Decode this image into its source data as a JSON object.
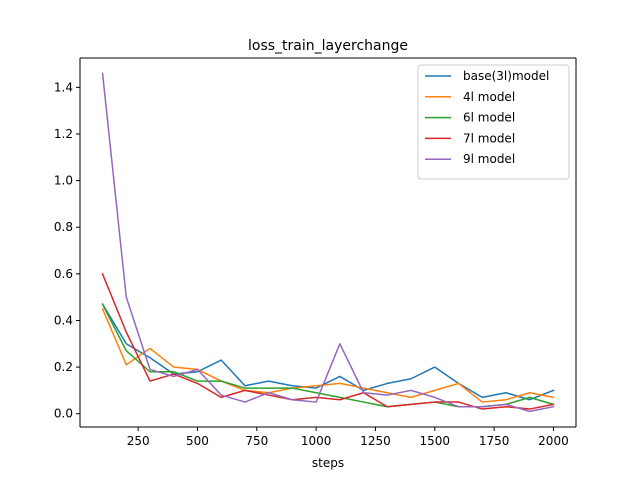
{
  "chart_data": {
    "type": "line",
    "title": "loss_train_layerchange",
    "xlabel": "steps",
    "ylabel": "",
    "xlim": [
      5,
      2095
    ],
    "ylim": [
      -0.057,
      1.526
    ],
    "xticks": [
      250,
      500,
      750,
      1000,
      1250,
      1500,
      1750,
      2000
    ],
    "yticks": [
      0.0,
      0.2,
      0.4,
      0.6,
      0.8,
      1.0,
      1.2,
      1.4
    ],
    "grid": false,
    "legend_position": "top-right",
    "x": [
      100,
      200,
      300,
      400,
      500,
      600,
      700,
      800,
      900,
      1000,
      1100,
      1200,
      1300,
      1400,
      1500,
      1600,
      1700,
      1800,
      1900,
      2000
    ],
    "series": [
      {
        "name": "base(3l)model",
        "color": "#1f77b4",
        "values": [
          0.47,
          0.3,
          0.24,
          0.17,
          0.18,
          0.23,
          0.12,
          0.14,
          0.12,
          0.11,
          0.16,
          0.1,
          0.13,
          0.15,
          0.2,
          0.13,
          0.07,
          0.09,
          0.06,
          0.1
        ]
      },
      {
        "name": "4l model",
        "color": "#ff7f0e",
        "values": [
          0.45,
          0.21,
          0.28,
          0.2,
          0.19,
          0.14,
          0.1,
          0.09,
          0.11,
          0.12,
          0.13,
          0.11,
          0.09,
          0.07,
          0.1,
          0.13,
          0.05,
          0.06,
          0.09,
          0.07
        ]
      },
      {
        "name": "6l model",
        "color": "#2ca02c",
        "values": [
          0.47,
          0.27,
          0.18,
          0.18,
          0.14,
          0.14,
          0.11,
          0.11,
          0.11,
          0.09,
          0.07,
          0.05,
          0.03,
          0.04,
          0.05,
          0.03,
          0.03,
          0.04,
          0.07,
          0.04
        ]
      },
      {
        "name": "7l model",
        "color": "#d62728",
        "values": [
          0.6,
          0.35,
          0.14,
          0.17,
          0.13,
          0.07,
          0.1,
          0.08,
          0.06,
          0.07,
          0.06,
          0.09,
          0.03,
          0.04,
          0.05,
          0.05,
          0.02,
          0.03,
          0.02,
          0.04
        ]
      },
      {
        "name": "9l model",
        "color": "#9467bd",
        "values": [
          1.46,
          0.5,
          0.19,
          0.16,
          0.19,
          0.08,
          0.05,
          0.09,
          0.06,
          0.05,
          0.3,
          0.09,
          0.08,
          0.1,
          0.07,
          0.03,
          0.03,
          0.04,
          0.01,
          0.03
        ]
      }
    ]
  }
}
